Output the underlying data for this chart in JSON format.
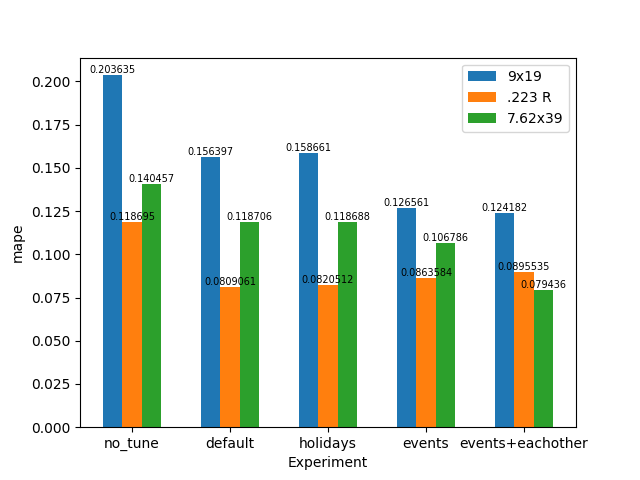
{
  "categories": [
    "no_tune",
    "default",
    "holidays",
    "events",
    "events+eachother"
  ],
  "series": [
    {
      "label": "9x19",
      "color": "#1f77b4",
      "values": [
        0.203635,
        0.156397,
        0.158661,
        0.126561,
        0.124182
      ]
    },
    {
      "label": ".223 R",
      "color": "#ff7f0e",
      "values": [
        0.118695,
        0.0809061,
        0.0820512,
        0.0863584,
        0.0895535
      ]
    },
    {
      "label": "7.62x39",
      "color": "#2ca02c",
      "values": [
        0.140457,
        0.118706,
        0.118688,
        0.106786,
        0.079436
      ]
    }
  ],
  "xlabel": "Experiment",
  "ylabel": "mape",
  "title": "",
  "bar_width": 0.2,
  "legend_loc": "upper right",
  "label_fontsize": 7
}
